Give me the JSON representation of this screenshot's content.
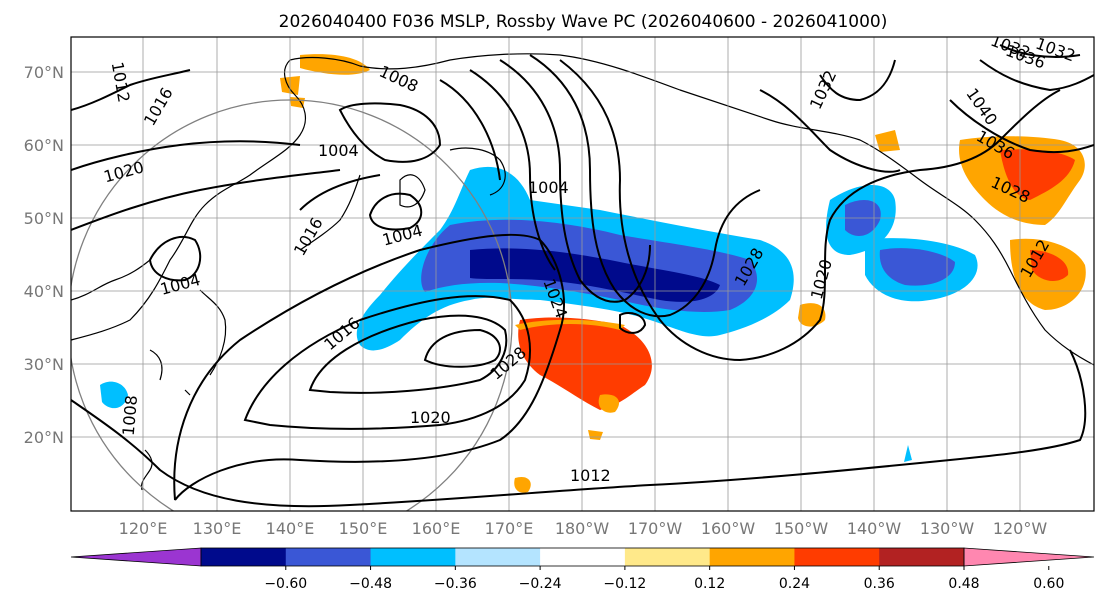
{
  "title": "2026040400 F036 MSLP, Rossby Wave PC (2026040600 - 2026041000)",
  "lat_labels": [
    "70°N",
    "60°N",
    "50°N",
    "40°N",
    "30°N",
    "20°N"
  ],
  "lon_labels": [
    "120°E",
    "130°E",
    "140°E",
    "150°E",
    "160°E",
    "170°E",
    "180°W",
    "170°W",
    "160°W",
    "150°W",
    "140°W",
    "130°W",
    "120°W"
  ],
  "colorbar": {
    "ticks": [
      "−0.60",
      "−0.48",
      "−0.36",
      "−0.24",
      "−0.12",
      "0.12",
      "0.24",
      "0.36",
      "0.48",
      "0.60"
    ],
    "colors": [
      "#9b35d1",
      "#000a8c",
      "#3a57d6",
      "#00bfff",
      "#b4e4ff",
      "#ffffff",
      "#ffe98a",
      "#ffa500",
      "#ff3c00",
      "#b22222",
      "#ff87b0"
    ]
  },
  "contour_labels": [
    {
      "text": "1012"
    },
    {
      "text": "1016"
    },
    {
      "text": "1020"
    },
    {
      "text": "1008"
    },
    {
      "text": "1004"
    },
    {
      "text": "1004"
    },
    {
      "text": "1004"
    },
    {
      "text": "1016"
    },
    {
      "text": "1004"
    },
    {
      "text": "1016"
    },
    {
      "text": "1024"
    },
    {
      "text": "1028"
    },
    {
      "text": "1028"
    },
    {
      "text": "1020"
    },
    {
      "text": "1012"
    },
    {
      "text": "1020"
    },
    {
      "text": "1032"
    },
    {
      "text": "1032"
    },
    {
      "text": "1032"
    },
    {
      "text": "1036"
    },
    {
      "text": "1040"
    },
    {
      "text": "1036"
    },
    {
      "text": "1028"
    },
    {
      "text": "1012"
    },
    {
      "text": "1008"
    }
  ],
  "colors": {
    "contour": "#000000",
    "grid": "#999999",
    "coast": "#000000",
    "circle": "#808080"
  }
}
